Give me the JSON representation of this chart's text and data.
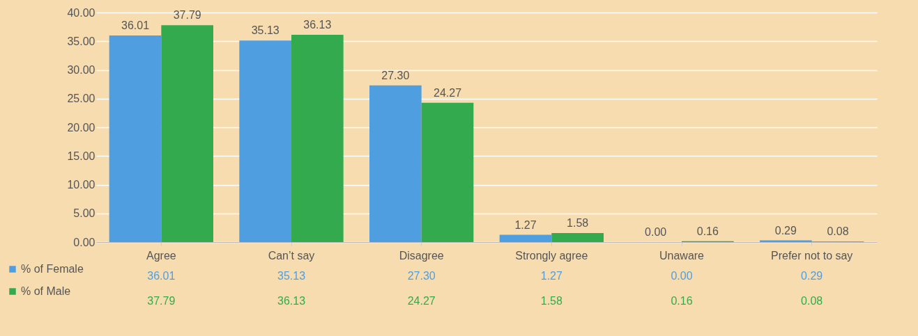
{
  "chart_data": {
    "type": "bar",
    "categories": [
      "Agree",
      "Can’t say",
      "Disagree",
      "Strongly agree",
      "Unaware",
      "Prefer not to say"
    ],
    "series": [
      {
        "name": "% of Female",
        "color": "#4f9ee0",
        "values": [
          36.01,
          35.13,
          27.3,
          1.27,
          0,
          0.29
        ],
        "value_labels": [
          "36.01",
          "35.13",
          "27.30",
          "1.27",
          "0.00",
          "0.29"
        ]
      },
      {
        "name": "% of Male",
        "color": "#33aa4e",
        "values": [
          37.79,
          36.13,
          24.27,
          1.58,
          0.16,
          0.08
        ],
        "value_labels": [
          "37.79",
          "36.13",
          "24.27",
          "1.58",
          "0.16",
          "0.08"
        ]
      }
    ],
    "ylim": [
      0,
      40
    ],
    "yticks": [
      {
        "value": 0,
        "label": "0.00"
      },
      {
        "value": 5,
        "label": "5.00"
      },
      {
        "value": 10,
        "label": "10.00"
      },
      {
        "value": 15,
        "label": "15.00"
      },
      {
        "value": 20,
        "label": "20.00"
      },
      {
        "value": 25,
        "label": "25.00"
      },
      {
        "value": 30,
        "label": "30.00"
      },
      {
        "value": 35,
        "label": "35.00"
      },
      {
        "value": 40,
        "label": "40.00"
      }
    ],
    "grid": "y",
    "legend": "bottom left"
  }
}
